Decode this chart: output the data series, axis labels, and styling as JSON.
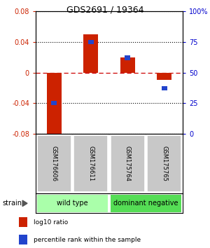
{
  "title": "GDS2691 / 19364",
  "samples": [
    "GSM176606",
    "GSM176611",
    "GSM175764",
    "GSM175765"
  ],
  "log10_ratio": [
    -0.085,
    0.05,
    0.02,
    -0.01
  ],
  "percentile_rank": [
    25,
    75,
    62,
    37
  ],
  "ylim_left": [
    -0.08,
    0.08
  ],
  "ylim_right": [
    0,
    100
  ],
  "bar_color_red": "#cc2200",
  "bar_color_blue": "#2244cc",
  "zero_line_color": "#cc0000",
  "dotted_line_color": "#000000",
  "groups": [
    {
      "label": "wild type",
      "samples": [
        0,
        1
      ],
      "color": "#aaffaa"
    },
    {
      "label": "dominant negative",
      "samples": [
        2,
        3
      ],
      "color": "#55dd55"
    }
  ],
  "strain_label": "strain",
  "legend_red": "log10 ratio",
  "legend_blue": "percentile rank within the sample",
  "sample_box_color": "#c8c8c8",
  "background_color": "#ffffff",
  "tick_color_left": "#cc2200",
  "tick_color_right": "#0000cc",
  "left_ticks": [
    -0.08,
    -0.04,
    0,
    0.04,
    0.08
  ],
  "right_ticks": [
    0,
    25,
    50,
    75,
    100
  ],
  "right_tick_labels": [
    "0",
    "25",
    "50",
    "75",
    "100%"
  ]
}
